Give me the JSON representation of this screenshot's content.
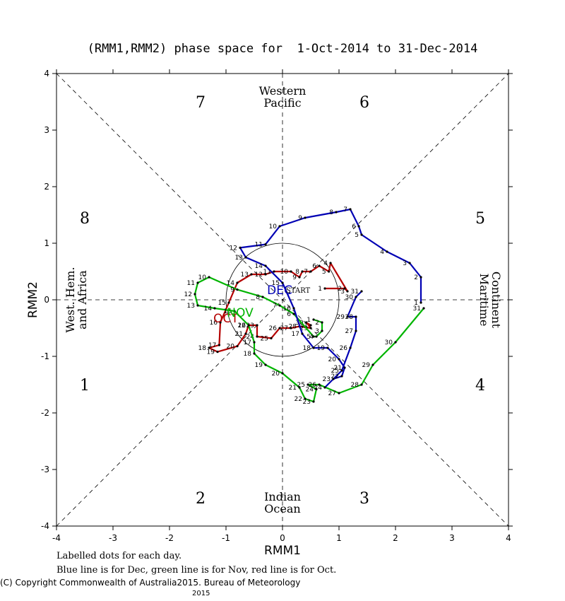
{
  "chart_data": {
    "type": "line",
    "title": "(RMM1,RMM2) phase space for  1-Oct-2014 to 31-Dec-2014",
    "xlabel": "RMM1",
    "ylabel": "RMM2",
    "xlim": [
      -4,
      4
    ],
    "ylim": [
      -4,
      4
    ],
    "ticks": [
      "-4",
      "-3",
      "-2",
      "-1",
      "0",
      "1",
      "2",
      "3",
      "4"
    ],
    "phases": [
      {
        "label": "1",
        "x": -3.5,
        "y": -1.5
      },
      {
        "label": "2",
        "x": -1.45,
        "y": -3.5
      },
      {
        "label": "3",
        "x": 1.45,
        "y": -3.5
      },
      {
        "label": "4",
        "x": 3.5,
        "y": -1.5
      },
      {
        "label": "5",
        "x": 3.5,
        "y": 1.45
      },
      {
        "label": "6",
        "x": 1.45,
        "y": 3.5
      },
      {
        "label": "7",
        "x": -1.45,
        "y": 3.5
      },
      {
        "label": "8",
        "x": -3.5,
        "y": 1.45
      }
    ],
    "regions": {
      "top": [
        "Western",
        "Pacific"
      ],
      "bottom": [
        "Indian",
        "Ocean"
      ],
      "left": [
        "West. Hem.",
        "and Africa"
      ],
      "right": [
        "Maritime",
        "Continent"
      ]
    },
    "start_label": "START",
    "series": [
      {
        "name": "OCT",
        "color": "#b40000",
        "label_pos": [
          -1.0,
          -0.4
        ],
        "points": [
          [
            0.75,
            0.2
          ],
          [
            1.1,
            0.2
          ],
          [
            1.15,
            0.15
          ],
          [
            0.85,
            0.65
          ],
          [
            0.82,
            0.5
          ],
          [
            0.65,
            0.6
          ],
          [
            0.5,
            0.5
          ],
          [
            0.35,
            0.5
          ],
          [
            0.3,
            0.4
          ],
          [
            0.15,
            0.5
          ],
          [
            -0.15,
            0.5
          ],
          [
            -0.3,
            0.45
          ],
          [
            -0.55,
            0.45
          ],
          [
            -0.8,
            0.3
          ],
          [
            -0.95,
            -0.05
          ],
          [
            -1.1,
            -0.4
          ],
          [
            -1.12,
            -0.8
          ],
          [
            -1.3,
            -0.85
          ],
          [
            -1.15,
            -0.92
          ],
          [
            -0.8,
            -0.82
          ],
          [
            -0.65,
            -0.6
          ],
          [
            -0.6,
            -0.45
          ],
          [
            -0.45,
            -0.45
          ],
          [
            -0.45,
            -0.65
          ],
          [
            -0.2,
            -0.68
          ],
          [
            -0.05,
            -0.5
          ],
          [
            0.15,
            -0.5
          ],
          [
            0.3,
            -0.47
          ],
          [
            0.5,
            -0.5
          ],
          [
            0.42,
            -0.4
          ],
          [
            0.5,
            -0.45
          ]
        ]
      },
      {
        "name": "NOV",
        "color": "#00b400",
        "label_pos": [
          -0.75,
          -0.3
        ],
        "points": [
          [
            0.55,
            -0.35
          ],
          [
            0.7,
            -0.4
          ],
          [
            0.7,
            -0.55
          ],
          [
            0.6,
            -0.65
          ],
          [
            0.55,
            -0.65
          ],
          [
            0.2,
            -0.25
          ],
          [
            -0.05,
            -0.1
          ],
          [
            -0.35,
            0.05
          ],
          [
            -0.8,
            0.18
          ],
          [
            -1.3,
            0.4
          ],
          [
            -1.5,
            0.3
          ],
          [
            -1.55,
            0.1
          ],
          [
            -1.5,
            -0.1
          ],
          [
            -1.2,
            -0.15
          ],
          [
            -0.85,
            -0.2
          ],
          [
            -0.6,
            -0.45
          ],
          [
            -0.5,
            -0.75
          ],
          [
            -0.5,
            -0.95
          ],
          [
            -0.3,
            -1.15
          ],
          [
            0.0,
            -1.3
          ],
          [
            0.3,
            -1.55
          ],
          [
            0.4,
            -1.75
          ],
          [
            0.55,
            -1.8
          ],
          [
            0.6,
            -1.58
          ],
          [
            0.45,
            -1.5
          ],
          [
            0.65,
            -1.5
          ],
          [
            1.0,
            -1.65
          ],
          [
            1.4,
            -1.5
          ],
          [
            1.6,
            -1.15
          ],
          [
            2.0,
            -0.75
          ],
          [
            2.5,
            -0.15
          ]
        ]
      },
      {
        "name": "DEC",
        "color": "#0000b4",
        "label_pos": [
          -0.05,
          0.1
        ],
        "points": [
          [
            2.45,
            -0.05
          ],
          [
            2.45,
            0.4
          ],
          [
            2.25,
            0.65
          ],
          [
            1.85,
            0.85
          ],
          [
            1.4,
            1.15
          ],
          [
            1.35,
            1.3
          ],
          [
            1.2,
            1.6
          ],
          [
            0.95,
            1.55
          ],
          [
            0.4,
            1.45
          ],
          [
            -0.05,
            1.3
          ],
          [
            -0.3,
            0.98
          ],
          [
            -0.75,
            0.92
          ],
          [
            -0.65,
            0.75
          ],
          [
            -0.3,
            0.6
          ],
          [
            0.0,
            0.3
          ],
          [
            0.2,
            -0.15
          ],
          [
            0.35,
            -0.6
          ],
          [
            0.55,
            -0.85
          ],
          [
            0.8,
            -0.85
          ],
          [
            1.0,
            -1.05
          ],
          [
            1.1,
            -1.2
          ],
          [
            1.05,
            -1.35
          ],
          [
            0.9,
            -1.4
          ],
          [
            0.75,
            -1.55
          ],
          [
            1.05,
            -1.25
          ],
          [
            1.2,
            -0.85
          ],
          [
            1.3,
            -0.55
          ],
          [
            1.3,
            -0.3
          ],
          [
            1.15,
            -0.3
          ],
          [
            1.3,
            0.05
          ],
          [
            1.4,
            0.15
          ]
        ]
      }
    ]
  },
  "notes": {
    "line1": "Labelled dots for each day.",
    "line2": "Blue line is for Dec, green line is for Nov, red line is for Oct."
  },
  "copyright": {
    "left": "(C) Copyright Commonwealth of Australia",
    "year": "2015",
    "right": ". Bureau of Meteorology",
    "year2": "2015"
  }
}
